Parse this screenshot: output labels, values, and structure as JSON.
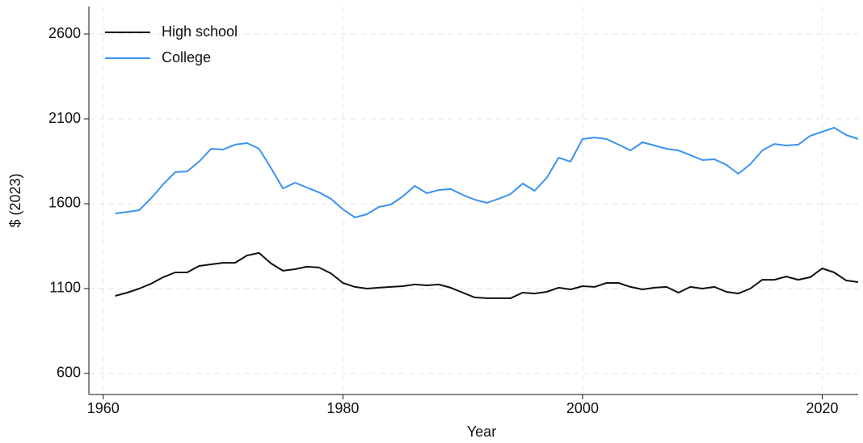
{
  "chart_data": {
    "type": "line",
    "x_label": "Year",
    "y_label": "$ (2023)",
    "x": [
      1961,
      1962,
      1963,
      1964,
      1965,
      1966,
      1967,
      1968,
      1969,
      1970,
      1971,
      1972,
      1973,
      1974,
      1975,
      1976,
      1977,
      1978,
      1979,
      1980,
      1981,
      1982,
      1983,
      1984,
      1985,
      1986,
      1987,
      1988,
      1989,
      1990,
      1991,
      1992,
      1993,
      1994,
      1995,
      1996,
      1997,
      1998,
      1999,
      2000,
      2001,
      2002,
      2003,
      2004,
      2005,
      2006,
      2007,
      2008,
      2009,
      2010,
      2011,
      2012,
      2013,
      2014,
      2015,
      2016,
      2017,
      2018,
      2019,
      2020,
      2021,
      2022,
      2023
    ],
    "series": [
      {
        "name": "High school",
        "color": "#111111",
        "values": [
          1057,
          1076,
          1100,
          1129,
          1167,
          1195,
          1195,
          1233,
          1243,
          1252,
          1252,
          1295,
          1310,
          1248,
          1205,
          1214,
          1229,
          1224,
          1190,
          1133,
          1110,
          1100,
          1105,
          1110,
          1114,
          1124,
          1119,
          1124,
          1105,
          1076,
          1048,
          1043,
          1043,
          1043,
          1076,
          1071,
          1081,
          1105,
          1095,
          1114,
          1110,
          1133,
          1133,
          1110,
          1095,
          1105,
          1110,
          1076,
          1110,
          1100,
          1110,
          1081,
          1071,
          1100,
          1152,
          1152,
          1171,
          1152,
          1167,
          1219,
          1195,
          1148,
          1138
        ]
      },
      {
        "name": "College",
        "color": "#3a93f0",
        "values": [
          1543,
          1552,
          1562,
          1633,
          1714,
          1786,
          1790,
          1848,
          1924,
          1919,
          1948,
          1957,
          1924,
          1810,
          1690,
          1724,
          1695,
          1667,
          1629,
          1567,
          1519,
          1538,
          1581,
          1595,
          1643,
          1705,
          1662,
          1681,
          1686,
          1652,
          1624,
          1605,
          1629,
          1657,
          1719,
          1676,
          1752,
          1871,
          1848,
          1981,
          1990,
          1981,
          1948,
          1914,
          1962,
          1943,
          1924,
          1914,
          1886,
          1857,
          1862,
          1829,
          1776,
          1833,
          1914,
          1952,
          1943,
          1948,
          2000,
          2024,
          2048,
          2005,
          1981
        ]
      }
    ],
    "xlim": [
      1958.8,
      2023
    ],
    "xticks": [
      1960,
      1980,
      2000,
      2020
    ],
    "ylim": [
      476,
      2762
    ],
    "yticks": [
      600,
      1100,
      1600,
      2100,
      2600
    ],
    "grid": true,
    "legend": "top-left"
  }
}
